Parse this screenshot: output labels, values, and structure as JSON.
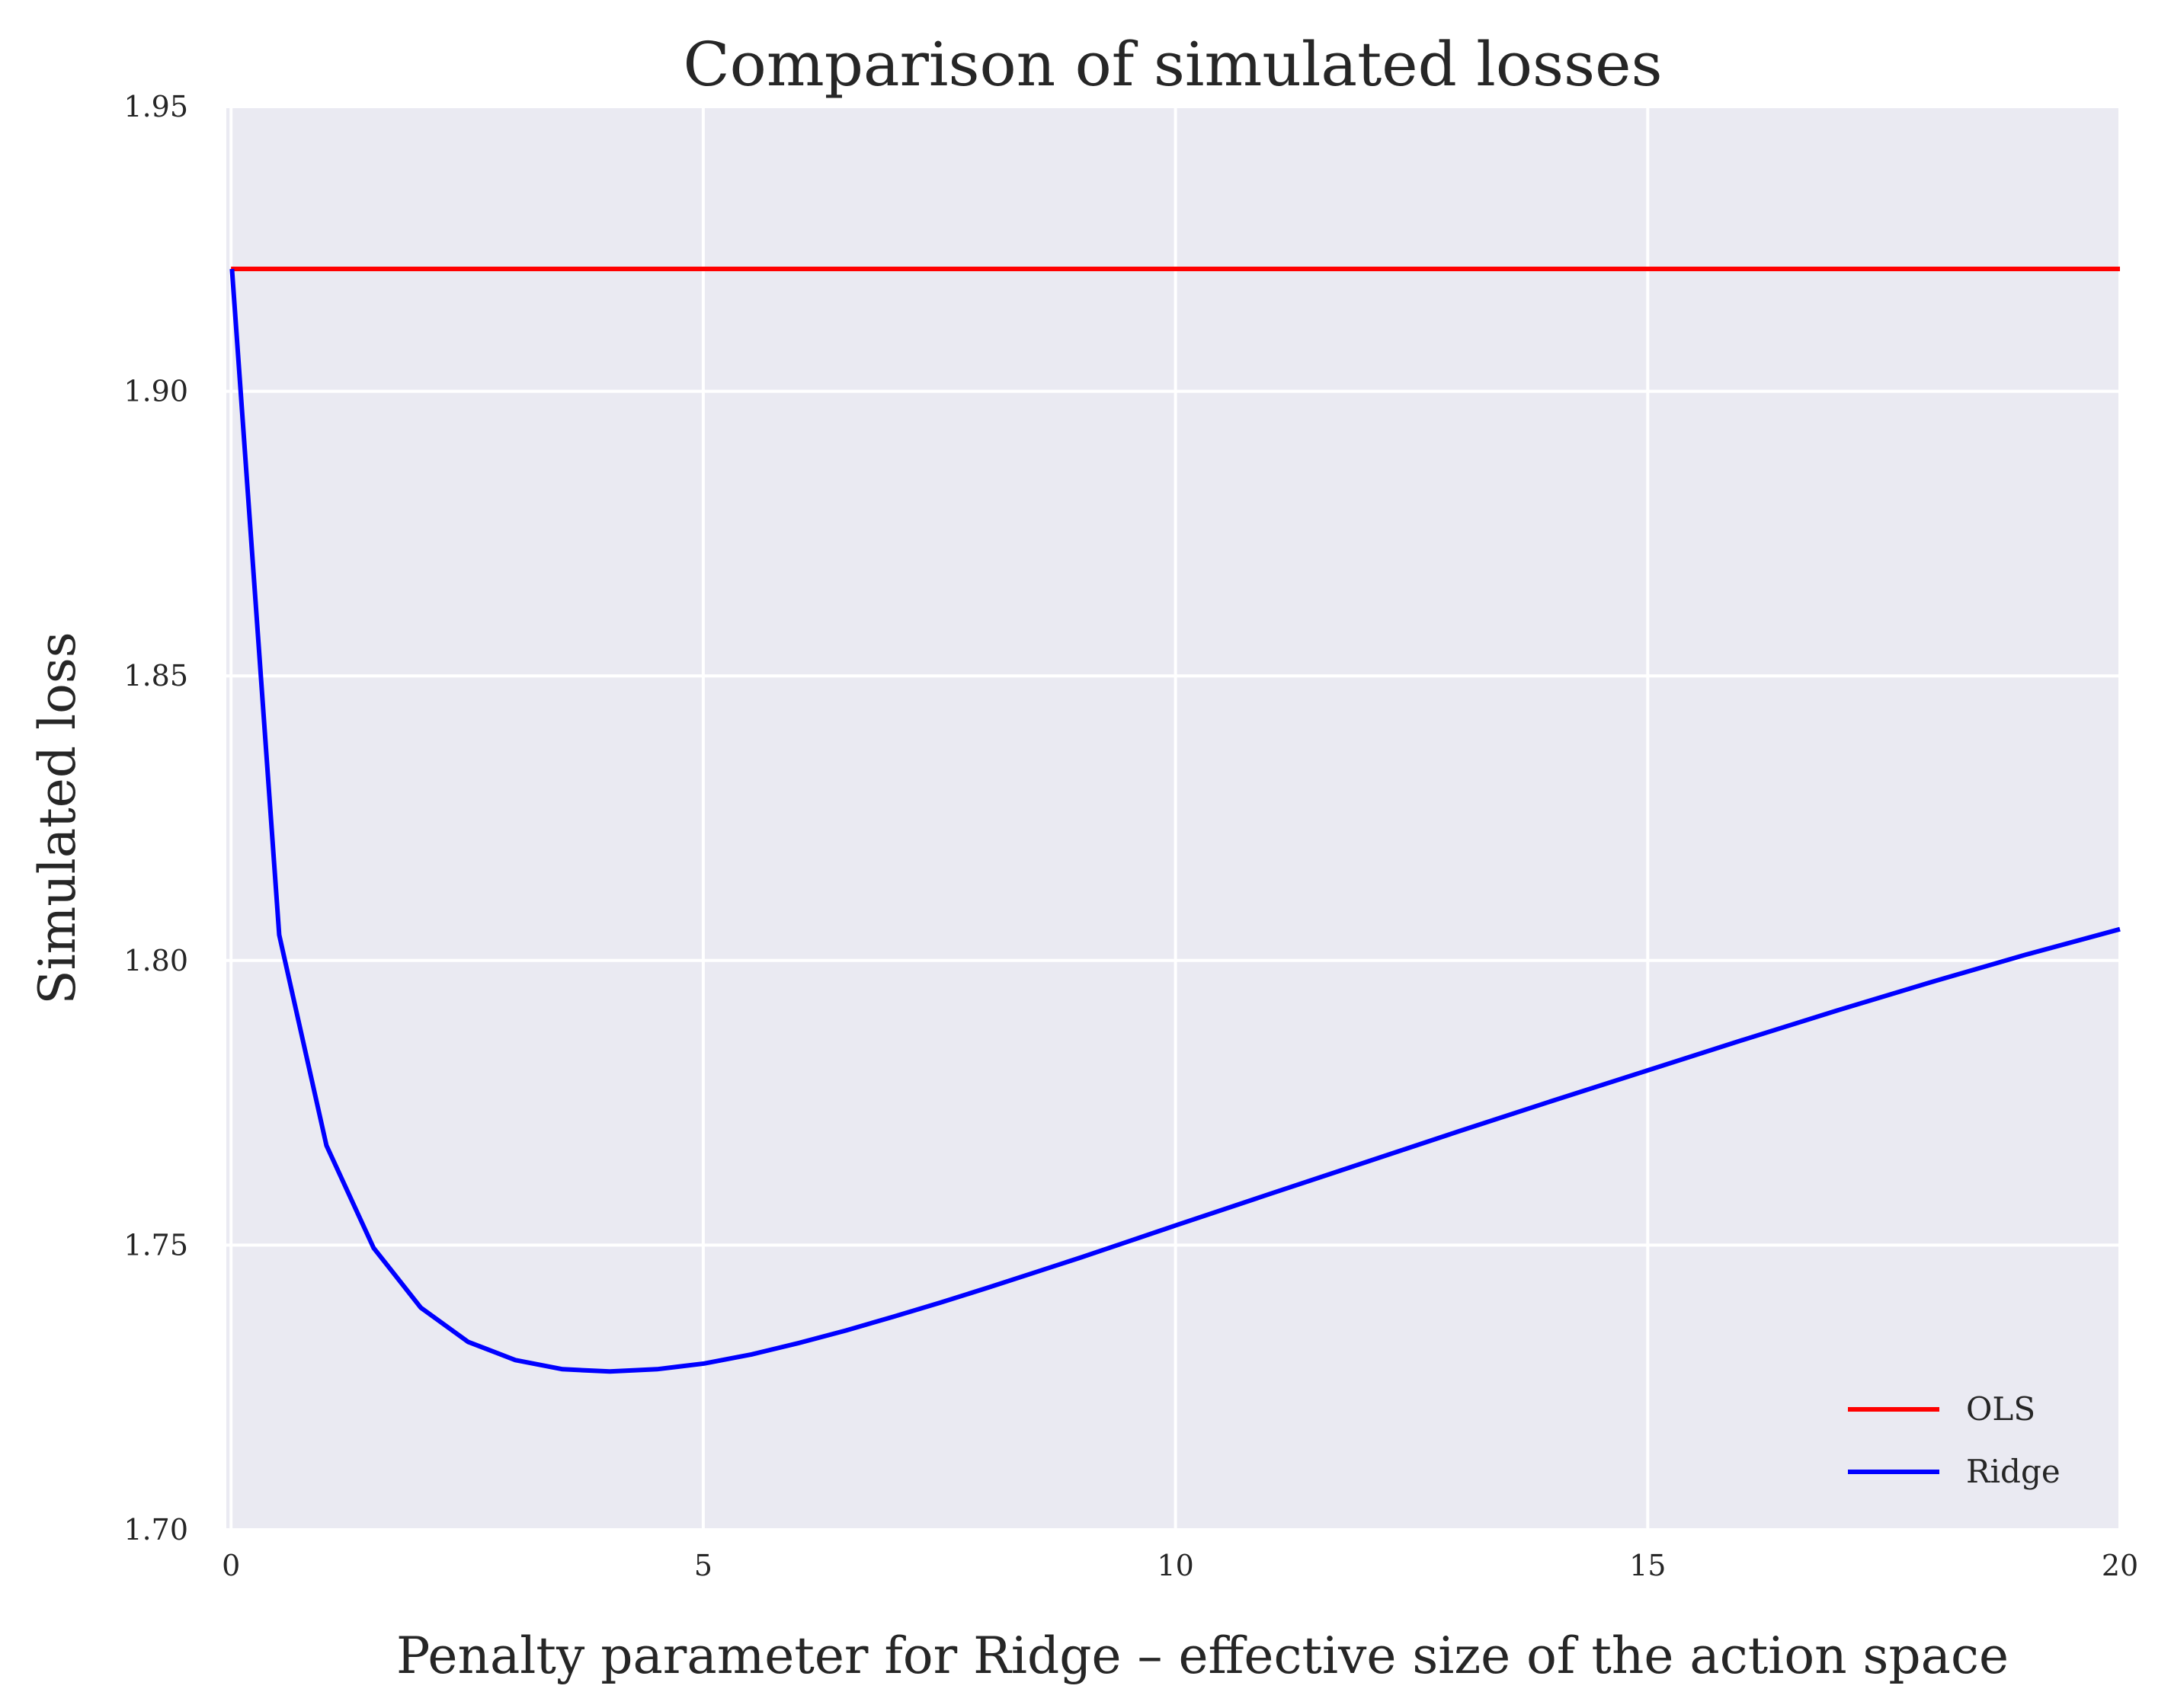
{
  "chart_data": {
    "type": "line",
    "title": "Comparison of simulated losses",
    "xlabel": "Penalty parameter for Ridge – effective size of the action space",
    "ylabel": "Simulated loss",
    "xlim": [
      -0.05,
      20
    ],
    "ylim": [
      1.7,
      1.95
    ],
    "xticks": [
      0,
      5,
      10,
      15,
      20
    ],
    "xtick_labels": [
      "0",
      "5",
      "10",
      "15",
      "20"
    ],
    "yticks": [
      1.7,
      1.75,
      1.8,
      1.85,
      1.9,
      1.95
    ],
    "ytick_labels": [
      "1.70",
      "1.75",
      "1.80",
      "1.85",
      "1.90",
      "1.95"
    ],
    "grid": true,
    "legend_position": "bottom-right",
    "series": [
      {
        "name": "OLS",
        "color": "#ff0000",
        "x": [
          0,
          20
        ],
        "y": [
          1.9215,
          1.9215
        ]
      },
      {
        "name": "Ridge",
        "color": "#0000ff",
        "x": [
          0.01,
          0.51,
          1.01,
          1.51,
          2.01,
          2.51,
          3.01,
          3.51,
          4.01,
          4.51,
          5.01,
          5.51,
          6.01,
          6.51,
          7.01,
          7.51,
          8.01,
          8.51,
          9.01,
          9.51,
          10.01,
          11,
          12,
          13,
          14,
          15,
          16,
          17,
          18,
          19,
          20
        ],
        "y": [
          1.9215,
          1.8045,
          1.7675,
          1.7495,
          1.739,
          1.733,
          1.7298,
          1.7282,
          1.7278,
          1.7282,
          1.7292,
          1.7308,
          1.7328,
          1.735,
          1.7374,
          1.7399,
          1.7425,
          1.7452,
          1.7479,
          1.7507,
          1.7535,
          1.759,
          1.7645,
          1.77,
          1.7754,
          1.7807,
          1.786,
          1.7912,
          1.7962,
          1.801,
          1.8055
        ]
      }
    ]
  }
}
